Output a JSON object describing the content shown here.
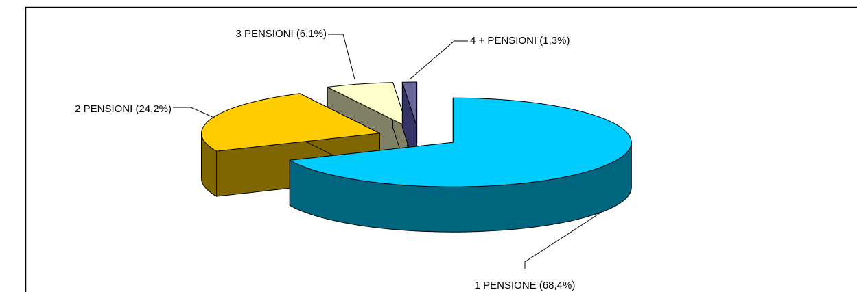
{
  "chart_data": {
    "type": "pie3d",
    "values": [
      68.4,
      24.2,
      6.1,
      1.3
    ],
    "value_labels": [
      "1 PENSIONE (68,4%)",
      "2 PENSIONI (24,2%)",
      "3 PENSIONI (6,1%)",
      "4 + PENSIONI (1,3%)"
    ],
    "colors": [
      "#00ccff",
      "#ffcc00",
      "#ffffcc",
      "#666699"
    ],
    "side_colors": [
      "#006680",
      "#806600",
      "#808066",
      "#333366"
    ]
  }
}
